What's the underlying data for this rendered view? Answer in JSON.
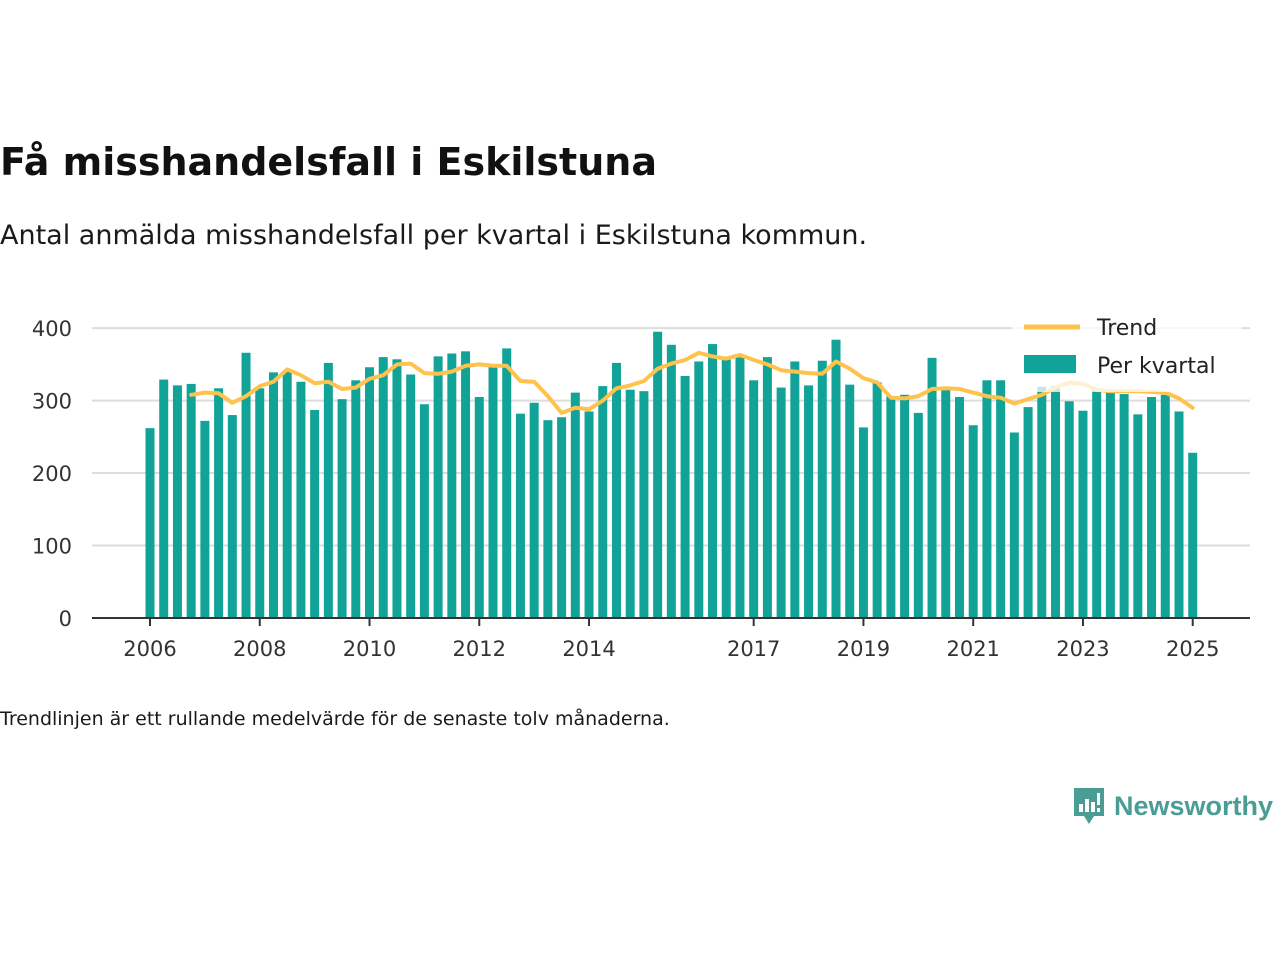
{
  "header": {
    "title": "Få misshandelsfall i Eskilstuna",
    "subtitle": "Antal anmälda misshandelsfall per kvartal i Eskilstuna kommun."
  },
  "footnote": "Trendlinjen är ett rullande medelvärde för de senaste tolv månaderna.",
  "brand": {
    "name": "Newsworthy",
    "icon": "newsworthy-logo-icon",
    "color": "#4a9d95"
  },
  "chart_data": {
    "type": "bar",
    "ylim": [
      0,
      400
    ],
    "yticks": [
      0,
      100,
      200,
      300,
      400
    ],
    "xticks": [
      {
        "label": "2006",
        "index": 0
      },
      {
        "label": "2008",
        "index": 8
      },
      {
        "label": "2010",
        "index": 16
      },
      {
        "label": "2012",
        "index": 24
      },
      {
        "label": "2014",
        "index": 32
      },
      {
        "label": "2017",
        "index": 44
      },
      {
        "label": "2019",
        "index": 52
      },
      {
        "label": "2021",
        "index": 60
      },
      {
        "label": "2023",
        "index": 68
      },
      {
        "label": "2025",
        "index": 76
      }
    ],
    "grid": true,
    "legend_position": "top-right",
    "colors": {
      "bars": "#11a398",
      "trend": "#ffc34d"
    },
    "series": [
      {
        "name": "Per kvartal",
        "kind": "bar",
        "values": [
          262,
          329,
          321,
          323,
          272,
          317,
          280,
          366,
          317,
          339,
          341,
          326,
          287,
          352,
          302,
          328,
          346,
          360,
          357,
          336,
          295,
          361,
          365,
          368,
          305,
          348,
          372,
          282,
          297,
          273,
          277,
          311,
          285,
          320,
          352,
          315,
          313,
          395,
          377,
          334,
          354,
          378,
          357,
          361,
          328,
          360,
          318,
          354,
          321,
          355,
          384,
          322,
          263,
          325,
          306,
          308,
          283,
          359,
          318,
          305,
          266,
          328,
          328,
          256,
          291,
          319,
          320,
          299,
          286,
          317,
          315,
          309,
          281,
          305,
          308,
          285,
          228
        ]
      },
      {
        "name": "Trend",
        "kind": "line",
        "values": [
          null,
          null,
          null,
          308,
          311,
          310,
          297,
          306,
          320,
          326,
          343,
          335,
          324,
          326,
          316,
          318,
          330,
          335,
          350,
          351,
          338,
          337,
          340,
          348,
          350,
          348,
          348,
          327,
          326,
          306,
          283,
          290,
          288,
          300,
          317,
          321,
          327,
          344,
          351,
          356,
          366,
          361,
          358,
          363,
          356,
          350,
          342,
          340,
          338,
          337,
          354,
          344,
          331,
          325,
          304,
          303,
          306,
          316,
          317,
          316,
          311,
          306,
          304,
          296,
          302,
          308,
          318,
          325,
          323,
          315,
          313,
          313,
          313,
          312,
          311,
          303,
          290
        ]
      }
    ]
  }
}
